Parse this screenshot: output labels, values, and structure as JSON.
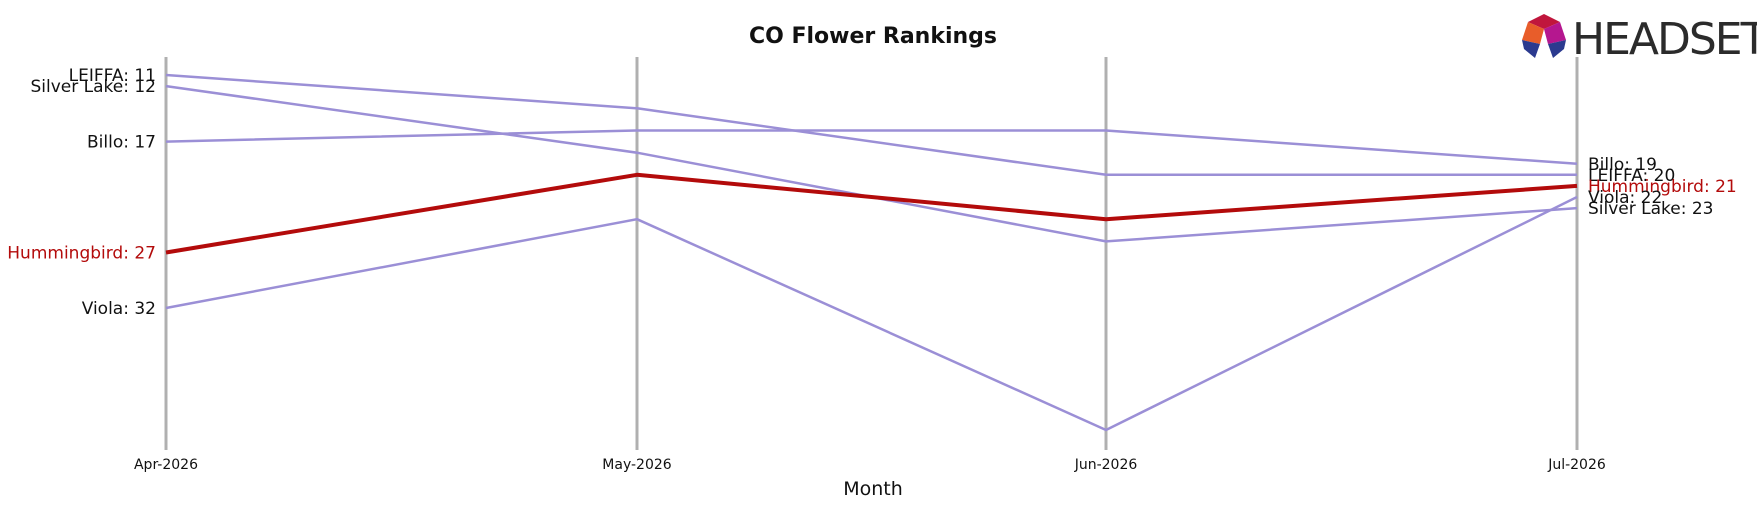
{
  "chart_data": {
    "type": "line",
    "title": "CO Flower Rankings",
    "xlabel": "Month",
    "ylabel": "",
    "x": [
      "Apr-2026",
      "May-2026",
      "Jun-2026",
      "Jul-2026"
    ],
    "y_inverted": true,
    "ylim": [
      9,
      44
    ],
    "grid": false,
    "highlight_series": "Hummingbird",
    "series": [
      {
        "name": "LEIFFA",
        "values": [
          11,
          14,
          20,
          20
        ],
        "color": "#9b8fd6",
        "start_label": "LEIFFA: 11",
        "end_label": "LEIFFA: 20"
      },
      {
        "name": "Silver Lake",
        "values": [
          12,
          18,
          26,
          23
        ],
        "color": "#9b8fd6",
        "start_label": "Silver Lake: 12",
        "end_label": "Silver Lake: 23"
      },
      {
        "name": "Billo",
        "values": [
          17,
          16,
          16,
          19
        ],
        "color": "#9b8fd6",
        "start_label": "Billo: 17",
        "end_label": "Billo: 19"
      },
      {
        "name": "Hummingbird",
        "values": [
          27,
          20,
          24,
          21
        ],
        "color": "#b30b0b",
        "start_label": "Hummingbird: 27",
        "end_label": "Hummingbird: 21"
      },
      {
        "name": "Viola",
        "values": [
          32,
          24,
          43,
          22
        ],
        "color": "#9b8fd6",
        "start_label": "Viola: 32",
        "end_label": "Viola: 22"
      }
    ],
    "colors": {
      "axis_line": "#b0b0b0",
      "highlight_label": "#b30b0b",
      "label": "#111111"
    }
  },
  "logo": {
    "text": "HEADSET",
    "colors": [
      "#c0163c",
      "#e85d2a",
      "#f2a431",
      "#b5178f",
      "#2b3a8f"
    ]
  }
}
